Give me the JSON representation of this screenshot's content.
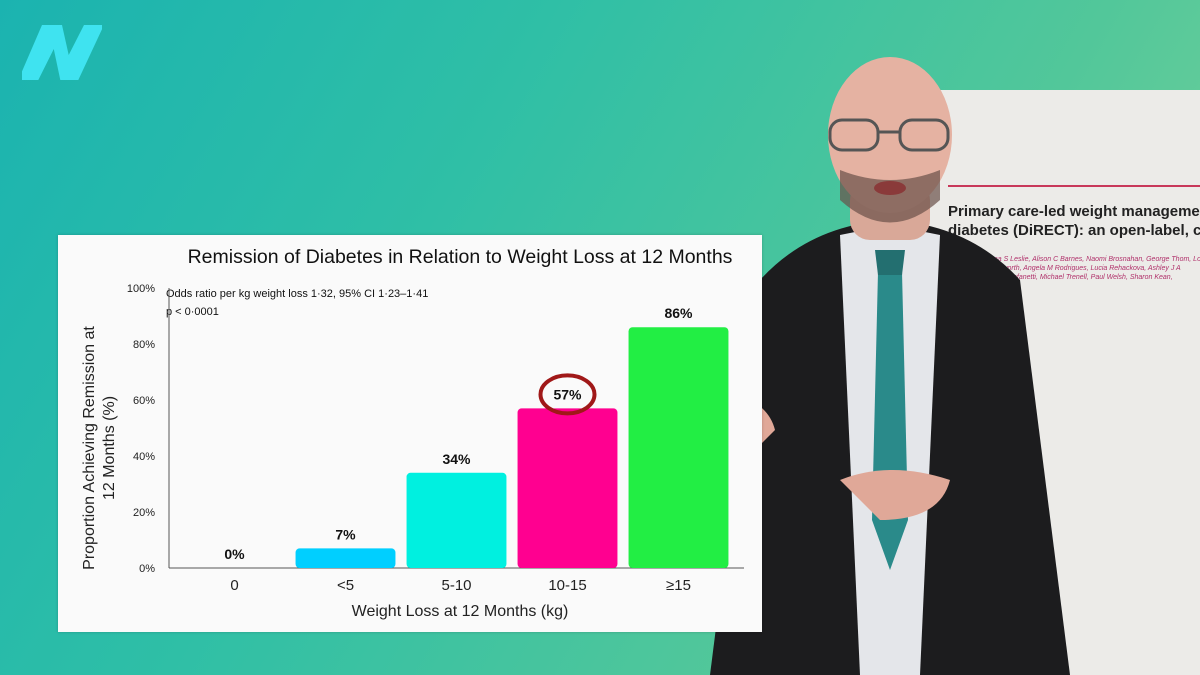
{
  "logo": {
    "icon": "nutritionfacts-n-logo",
    "color": "#3fe3f0"
  },
  "chart_data": {
    "type": "bar",
    "title": "Remission of Diabetes in Relation to Weight Loss at 12 Months",
    "xlabel": "Weight Loss at 12 Months (kg)",
    "ylabel": "Proportion Achieving Remission at 12 Months (%)",
    "ylabel_lines": [
      "Proportion Achieving Remission at",
      "12 Months (%)"
    ],
    "categories": [
      "0",
      "<5",
      "5-10",
      "10-15",
      "≥15"
    ],
    "values": [
      0,
      7,
      34,
      57,
      86
    ],
    "data_labels": [
      "0%",
      "7%",
      "34%",
      "57%",
      "86%"
    ],
    "colors": [
      "#00cfff",
      "#00cfff",
      "#00f0e0",
      "#ff0090",
      "#22ee44"
    ],
    "ylim": [
      0,
      100
    ],
    "yticks": [
      0,
      20,
      40,
      60,
      80,
      100
    ],
    "ytick_labels": [
      "0%",
      "20%",
      "40%",
      "60%",
      "80%",
      "100%"
    ],
    "annotation_lines": [
      "Odds ratio per kg weight loss 1·32, 95% CI 1·23–1·41",
      "p < 0·0001"
    ],
    "highlight": {
      "category": "10-15",
      "style": "circle",
      "color": "#a01818"
    },
    "grid": false
  },
  "paper": {
    "title_lines": [
      "Primary care-led weight management",
      "diabetes (DiRECT): an open-label, clust"
    ],
    "authors_lines": [
      "E J Lean*, Wilma S Leslie, Alison C Barnes, Naomi Brosnahan, George Thom, Louise M",
      "Kieren G Hollingsworth, Angela M Rodrigues, Lucia Rehackova, Ashley J A",
      "McIlvenna, Renae Stefanetti, Michael Trenell, Paul Welsh, Sharon Kean,"
    ]
  }
}
